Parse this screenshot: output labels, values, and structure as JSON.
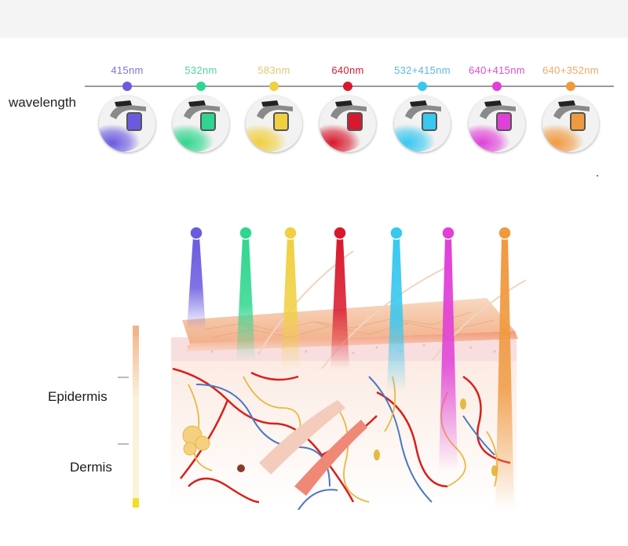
{
  "wavelength_label": "wavelength",
  "wavelengths": [
    {
      "label": "415nm",
      "color": "#6a5ae0",
      "text_color": "#7a72d8"
    },
    {
      "label": "532nm",
      "color": "#2fd68f",
      "text_color": "#4fd6a0"
    },
    {
      "label": "583nm",
      "color": "#f0d040",
      "text_color": "#e0c870"
    },
    {
      "label": "640nm",
      "color": "#d8182c",
      "text_color": "#d8182c"
    },
    {
      "label": "532+415nm",
      "color": "#38c8f0",
      "text_color": "#5ab8e0"
    },
    {
      "label": "640+415nm",
      "color": "#e040d8",
      "text_color": "#d850c8"
    },
    {
      "label": "640+352nm",
      "color": "#f09a40",
      "text_color": "#f0a860"
    }
  ],
  "layers": {
    "epidermis": "Epidermis",
    "dermis": "Dermis"
  }
}
